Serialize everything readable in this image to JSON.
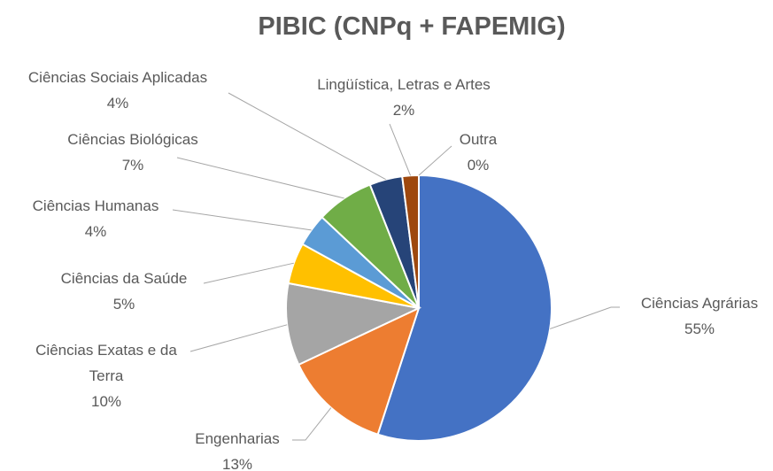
{
  "chart_data": {
    "type": "pie",
    "title": "PIBIC (CNPq + FAPEMIG)",
    "categories": [
      "Ciências Agrárias",
      "Engenharias",
      "Ciências Exatas e da Terra",
      "Ciências da Saúde",
      "Ciências Humanas",
      "Ciências Biológicas",
      "Ciências Sociais Aplicadas",
      "Lingüística, Letras e Artes",
      "Outra"
    ],
    "values": [
      55,
      13,
      10,
      5,
      4,
      7,
      4,
      2,
      0
    ],
    "value_labels": [
      "55%",
      "13%",
      "10%",
      "5%",
      "4%",
      "7%",
      "4%",
      "2%",
      "0%"
    ],
    "colors": [
      "#4472c4",
      "#ed7d31",
      "#a5a5a5",
      "#ffc000",
      "#5b9bd5",
      "#70ad47",
      "#264478",
      "#9e480e",
      "#636363"
    ]
  }
}
